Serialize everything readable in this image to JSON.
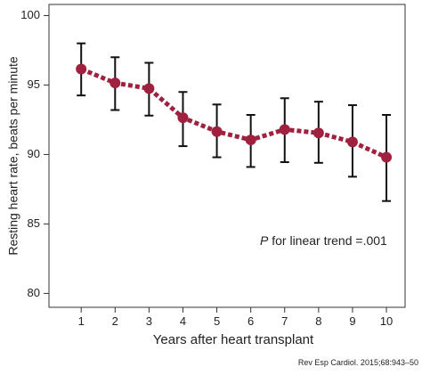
{
  "chart_data": {
    "type": "line",
    "y_label": "Resting heart rate, beats per minute",
    "x_label": "Years after heart transplant",
    "annotation_italic": "P",
    "annotation": " for linear trend =.001",
    "source": "Rev Esp Cardiol. 2015;68:943–50",
    "x": [
      1,
      2,
      3,
      4,
      5,
      6,
      7,
      8,
      9,
      10
    ],
    "series": [
      {
        "color": "#a0203f",
        "values": [
          96.15,
          95.15,
          94.75,
          92.65,
          91.65,
          91.05,
          91.8,
          91.55,
          90.9,
          89.8
        ],
        "upper": [
          98.0,
          97.0,
          96.6,
          94.5,
          93.6,
          92.85,
          94.05,
          93.8,
          93.55,
          92.85
        ],
        "lower": [
          94.25,
          93.2,
          92.8,
          90.6,
          89.8,
          89.1,
          89.45,
          89.4,
          88.4,
          86.65
        ]
      }
    ],
    "xlim": [
      0.05,
      10.55
    ],
    "ylim": [
      79,
      100.8
    ],
    "xticks": [
      1,
      2,
      3,
      4,
      5,
      6,
      7,
      8,
      9,
      10
    ],
    "yticks": [
      80,
      85,
      90,
      95,
      100
    ]
  }
}
